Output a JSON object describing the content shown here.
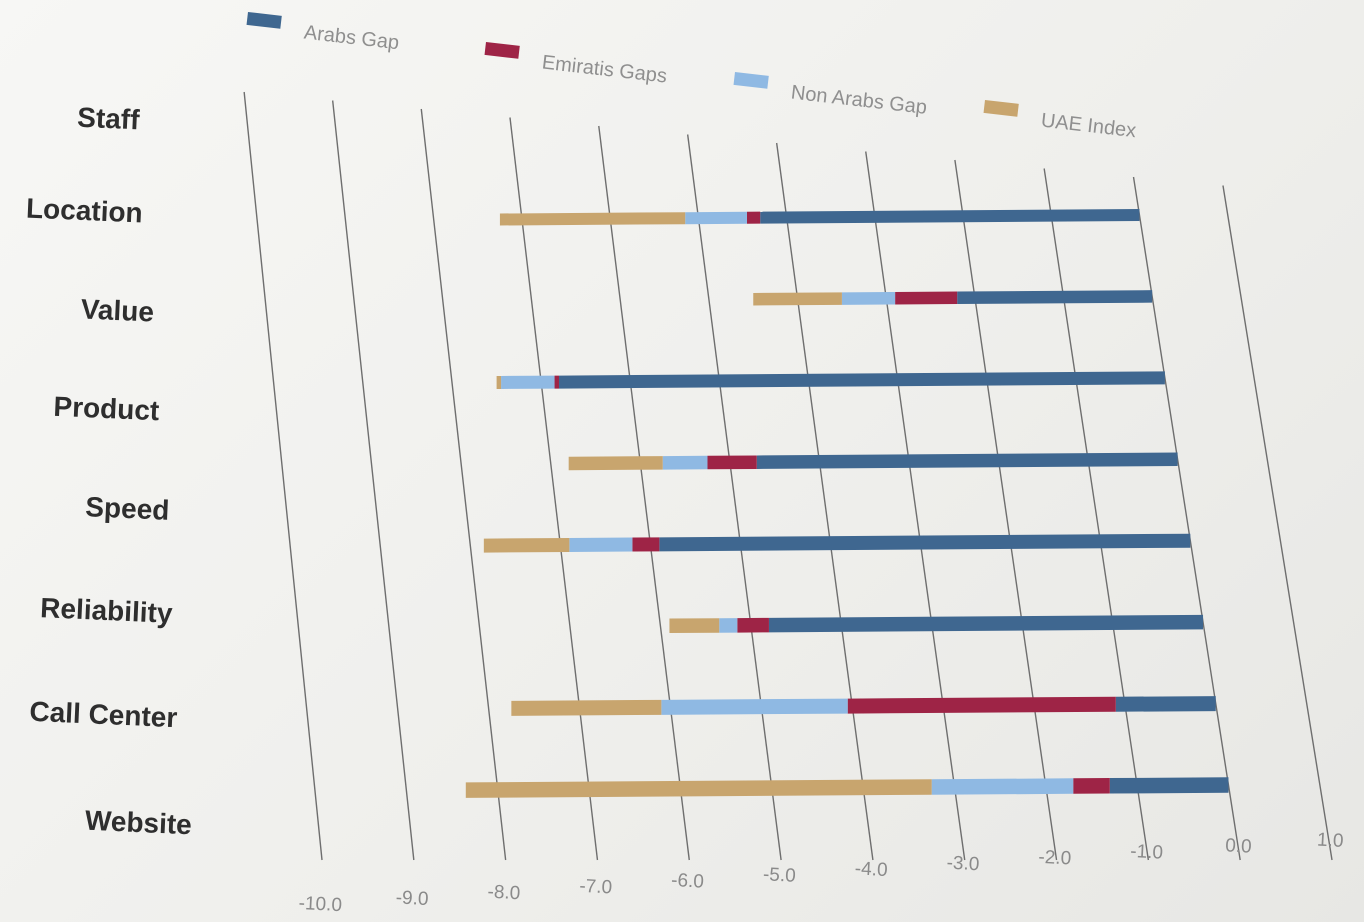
{
  "chart_data": {
    "type": "bar",
    "orientation": "horizontal",
    "stacked": true,
    "categories": [
      "Staff",
      "Location",
      "Value",
      "Product",
      "Speed",
      "Reliability",
      "Call Center",
      "Website"
    ],
    "series": [
      {
        "name": "Arabs Gap",
        "color": "#3f6790",
        "values": [
          -4.3,
          -2.2,
          -6.8,
          -4.7,
          -5.9,
          -4.8,
          -1.1,
          -1.3
        ]
      },
      {
        "name": "Emiratis Gaps",
        "color": "#9e2446",
        "values": [
          -0.15,
          -0.7,
          -0.05,
          -0.55,
          -0.3,
          -0.35,
          -2.95,
          -0.4
        ]
      },
      {
        "name": "Non Arabs Gap",
        "color": "#8fb9e3",
        "values": [
          -0.7,
          -0.6,
          -0.6,
          -0.5,
          -0.7,
          -0.2,
          -2.05,
          -1.55
        ]
      },
      {
        "name": "UAE Index",
        "color": "#c8a56e",
        "values": [
          -2.1,
          -1.0,
          -0.05,
          -1.05,
          -0.95,
          -0.55,
          -1.65,
          -5.1
        ]
      }
    ],
    "xlim": [
      -10.0,
      1.0
    ],
    "ticks": [
      "-10.0",
      "-9.0",
      "-8.0",
      "-7.0",
      "-6.0",
      "-5.0",
      "-4.0",
      "-3.0",
      "-2.0",
      "-1.0",
      "0.0",
      "1.0"
    ],
    "legend_position": "top",
    "grid": true
  }
}
